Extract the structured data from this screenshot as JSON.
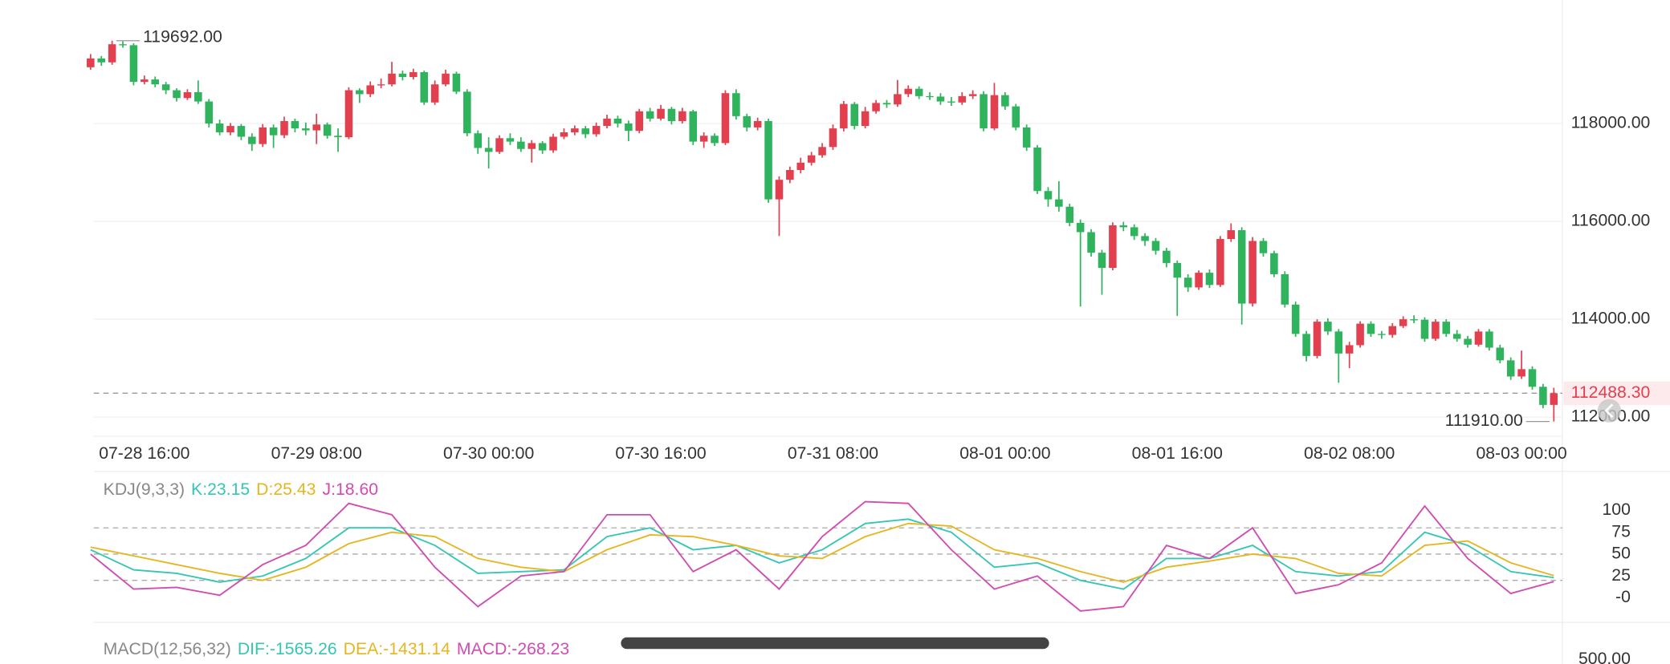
{
  "chart_data": [
    {
      "type": "candlestick",
      "colors": {
        "up": "#e3404f",
        "down": "#2fb35d"
      },
      "grid": true,
      "xlim": [
        -0.5,
        136.8
      ],
      "ylim": [
        111609,
        120522
      ],
      "yticks": [
        {
          "value": 112000,
          "label": "112000.00"
        },
        {
          "value": 114000,
          "label": "114000.00"
        },
        {
          "value": 116000,
          "label": "116000.00"
        },
        {
          "value": 118000,
          "label": "118000.00"
        }
      ],
      "xticks": [
        {
          "value": 5,
          "label": "07-28 16:00"
        },
        {
          "value": 21,
          "label": "07-29 08:00"
        },
        {
          "value": 37,
          "label": "07-30 00:00"
        },
        {
          "value": 53,
          "label": "07-30 16:00"
        },
        {
          "value": 69,
          "label": "07-31 08:00"
        },
        {
          "value": 85,
          "label": "08-01 00:00"
        },
        {
          "value": 101,
          "label": "08-01 16:00"
        },
        {
          "value": 117,
          "label": "08-02 08:00"
        },
        {
          "value": 133,
          "label": "08-03 00:00"
        }
      ],
      "high_label": {
        "x": 2,
        "value": 119692,
        "label": "119692.00"
      },
      "low_label": {
        "x": 136,
        "value": 111910,
        "label": "111910.00"
      },
      "last_price": {
        "value": 112488.3,
        "label": "112488.30"
      },
      "ohlc": [
        [
          119150,
          119420,
          119100,
          119330
        ],
        [
          119330,
          119380,
          119180,
          119250
        ],
        [
          119250,
          119692,
          119200,
          119620
        ],
        [
          119620,
          119680,
          119550,
          119600
        ],
        [
          119600,
          119640,
          118780,
          118850
        ],
        [
          118850,
          118980,
          118800,
          118900
        ],
        [
          118900,
          118960,
          118740,
          118800
        ],
        [
          118800,
          118850,
          118600,
          118680
        ],
        [
          118680,
          118720,
          118450,
          118520
        ],
        [
          118520,
          118700,
          118480,
          118640
        ],
        [
          118640,
          118880,
          118400,
          118450
        ],
        [
          118450,
          118500,
          117920,
          118000
        ],
        [
          118000,
          118080,
          117760,
          117820
        ],
        [
          117820,
          118010,
          117760,
          117950
        ],
        [
          117950,
          117990,
          117660,
          117730
        ],
        [
          117730,
          117800,
          117440,
          117580
        ],
        [
          117580,
          117990,
          117520,
          117920
        ],
        [
          117920,
          117980,
          117500,
          117760
        ],
        [
          117760,
          118140,
          117700,
          118050
        ],
        [
          118050,
          118100,
          117820,
          117900
        ],
        [
          117900,
          118020,
          117760,
          117860
        ],
        [
          117860,
          118200,
          117580,
          117980
        ],
        [
          117980,
          118020,
          117690,
          117750
        ],
        [
          117750,
          117900,
          117420,
          117720
        ],
        [
          117720,
          118740,
          117680,
          118680
        ],
        [
          118680,
          118720,
          118420,
          118600
        ],
        [
          118600,
          118860,
          118540,
          118780
        ],
        [
          118780,
          118920,
          118720,
          118800
        ],
        [
          118800,
          119260,
          118760,
          119020
        ],
        [
          119020,
          119080,
          118880,
          118950
        ],
        [
          118950,
          119120,
          118900,
          119050
        ],
        [
          119050,
          119080,
          118380,
          118430
        ],
        [
          118430,
          118880,
          118380,
          118800
        ],
        [
          118800,
          119100,
          118760,
          119020
        ],
        [
          119020,
          119060,
          118600,
          118650
        ],
        [
          118650,
          118700,
          117740,
          117800
        ],
        [
          117800,
          117860,
          117380,
          117500
        ],
        [
          117500,
          117720,
          117080,
          117420
        ],
        [
          117420,
          117760,
          117380,
          117700
        ],
        [
          117700,
          117800,
          117560,
          117630
        ],
        [
          117630,
          117720,
          117420,
          117480
        ],
        [
          117480,
          117660,
          117200,
          117600
        ],
        [
          117600,
          117640,
          117380,
          117450
        ],
        [
          117450,
          117790,
          117400,
          117730
        ],
        [
          117730,
          117900,
          117680,
          117820
        ],
        [
          117820,
          117960,
          117760,
          117900
        ],
        [
          117900,
          117950,
          117700,
          117780
        ],
        [
          117780,
          118020,
          117730,
          117950
        ],
        [
          117950,
          118180,
          117900,
          118100
        ],
        [
          118100,
          118160,
          117920,
          118000
        ],
        [
          118000,
          118060,
          117640,
          117850
        ],
        [
          117850,
          118300,
          117800,
          118250
        ],
        [
          118250,
          118320,
          118040,
          118100
        ],
        [
          118100,
          118380,
          118060,
          118300
        ],
        [
          118300,
          118340,
          117980,
          118050
        ],
        [
          118050,
          118320,
          118000,
          118250
        ],
        [
          118250,
          118280,
          117560,
          117630
        ],
        [
          117630,
          117820,
          117500,
          117750
        ],
        [
          117750,
          117800,
          117540,
          117600
        ],
        [
          117600,
          118680,
          117560,
          118620
        ],
        [
          118620,
          118700,
          118080,
          118150
        ],
        [
          118150,
          118200,
          117840,
          117920
        ],
        [
          117920,
          118120,
          117860,
          118050
        ],
        [
          118050,
          118100,
          116380,
          116450
        ],
        [
          116450,
          116920,
          115700,
          116850
        ],
        [
          116850,
          117120,
          116780,
          117050
        ],
        [
          117050,
          117300,
          116980,
          117200
        ],
        [
          117200,
          117420,
          117140,
          117350
        ],
        [
          117350,
          117600,
          117300,
          117520
        ],
        [
          117520,
          117980,
          117460,
          117900
        ],
        [
          117900,
          118460,
          117840,
          118400
        ],
        [
          118400,
          118440,
          117880,
          117950
        ],
        [
          117950,
          118340,
          117900,
          118250
        ],
        [
          118250,
          118480,
          118200,
          118420
        ],
        [
          118420,
          118480,
          118320,
          118390
        ],
        [
          118390,
          118890,
          118340,
          118600
        ],
        [
          118600,
          118780,
          118540,
          118710
        ],
        [
          118710,
          118760,
          118500,
          118560
        ],
        [
          118560,
          118640,
          118480,
          118550
        ],
        [
          118550,
          118620,
          118380,
          118450
        ],
        [
          118450,
          118540,
          118360,
          118430
        ],
        [
          118430,
          118640,
          118380,
          118560
        ],
        [
          118560,
          118680,
          118500,
          118600
        ],
        [
          118600,
          118660,
          117840,
          117900
        ],
        [
          117900,
          118830,
          117860,
          118580
        ],
        [
          118580,
          118640,
          118280,
          118350
        ],
        [
          118350,
          118400,
          117860,
          117920
        ],
        [
          117920,
          117980,
          117440,
          117510
        ],
        [
          117510,
          117560,
          116560,
          116620
        ],
        [
          116620,
          116700,
          116300,
          116450
        ],
        [
          116450,
          116820,
          116200,
          116300
        ],
        [
          116300,
          116360,
          115900,
          115970
        ],
        [
          115970,
          116040,
          114260,
          115780
        ],
        [
          115780,
          115840,
          115280,
          115360
        ],
        [
          115360,
          115420,
          114500,
          115050
        ],
        [
          115050,
          115980,
          115000,
          115920
        ],
        [
          115920,
          115990,
          115800,
          115880
        ],
        [
          115880,
          115940,
          115620,
          115700
        ],
        [
          115700,
          115760,
          115500,
          115600
        ],
        [
          115600,
          115660,
          115320,
          115400
        ],
        [
          115400,
          115460,
          115060,
          115150
        ],
        [
          115150,
          115200,
          114070,
          114850
        ],
        [
          114850,
          114920,
          114560,
          114650
        ],
        [
          114650,
          115000,
          114600,
          114950
        ],
        [
          114950,
          115020,
          114640,
          114700
        ],
        [
          114700,
          115700,
          114660,
          115640
        ],
        [
          115640,
          115960,
          115580,
          115820
        ],
        [
          115820,
          115880,
          113890,
          114320
        ],
        [
          114320,
          115680,
          114260,
          115600
        ],
        [
          115600,
          115660,
          115280,
          115350
        ],
        [
          115350,
          115400,
          114860,
          114920
        ],
        [
          114920,
          114980,
          114240,
          114300
        ],
        [
          114300,
          114360,
          113640,
          113700
        ],
        [
          113700,
          113760,
          113140,
          113250
        ],
        [
          113250,
          114000,
          113200,
          113950
        ],
        [
          113950,
          114020,
          113680,
          113750
        ],
        [
          113750,
          113800,
          112700,
          113300
        ],
        [
          113300,
          113540,
          113000,
          113470
        ],
        [
          113470,
          113960,
          113420,
          113910
        ],
        [
          113910,
          113960,
          113640,
          113700
        ],
        [
          113700,
          113760,
          113600,
          113680
        ],
        [
          113680,
          113920,
          113620,
          113860
        ],
        [
          113860,
          114060,
          113820,
          114000
        ],
        [
          114000,
          114080,
          113920,
          113990
        ],
        [
          113990,
          114040,
          113540,
          113600
        ],
        [
          113600,
          114000,
          113560,
          113950
        ],
        [
          113950,
          114000,
          113640,
          113700
        ],
        [
          113700,
          113780,
          113540,
          113600
        ],
        [
          113600,
          113660,
          113420,
          113480
        ],
        [
          113480,
          113800,
          113440,
          113750
        ],
        [
          113750,
          113800,
          113360,
          113420
        ],
        [
          113420,
          113480,
          113100,
          113160
        ],
        [
          113160,
          113220,
          112760,
          112830
        ],
        [
          112830,
          113360,
          112780,
          112980
        ],
        [
          112980,
          113040,
          112560,
          112620
        ],
        [
          112620,
          112680,
          112180,
          112250
        ],
        [
          112250,
          112600,
          111910,
          112488.3
        ]
      ]
    },
    {
      "type": "line",
      "title": "KDJ(9,3,3)",
      "xlim": [
        -0.5,
        136.8
      ],
      "ylim": [
        -22,
        130
      ],
      "yticks": [
        100,
        75,
        50,
        25,
        {
          "value": 0,
          "label": "-0"
        }
      ],
      "ref_lines": [
        80,
        50,
        20
      ],
      "x": [
        0,
        4,
        8,
        12,
        16,
        20,
        24,
        28,
        32,
        36,
        40,
        44,
        48,
        52,
        56,
        60,
        64,
        68,
        72,
        76,
        80,
        84,
        88,
        92,
        96,
        100,
        104,
        108,
        112,
        116,
        120,
        124,
        128,
        132,
        136
      ],
      "series": [
        {
          "name": "K:23.15",
          "color": "#35c6b4",
          "values": [
            55,
            32,
            28,
            18,
            25,
            45,
            80,
            80,
            60,
            28,
            30,
            32,
            70,
            80,
            55,
            60,
            40,
            55,
            85,
            90,
            75,
            35,
            40,
            20,
            10,
            45,
            45,
            60,
            30,
            25,
            30,
            75,
            60,
            30,
            23.15
          ]
        },
        {
          "name": "D:25.43",
          "color": "#e6b620",
          "values": [
            58,
            48,
            38,
            28,
            20,
            35,
            62,
            75,
            70,
            45,
            35,
            30,
            55,
            72,
            70,
            60,
            48,
            45,
            70,
            85,
            82,
            55,
            45,
            30,
            18,
            35,
            42,
            50,
            45,
            28,
            25,
            60,
            65,
            40,
            25.43
          ]
        },
        {
          "name": "J:18.60",
          "color": "#d04cb2",
          "values": [
            50,
            10,
            12,
            3,
            38,
            60,
            108,
            95,
            35,
            -10,
            25,
            30,
            95,
            95,
            30,
            55,
            10,
            70,
            110,
            108,
            55,
            10,
            25,
            -15,
            -10,
            60,
            45,
            80,
            5,
            15,
            40,
            105,
            45,
            5,
            18.6
          ]
        }
      ]
    },
    {
      "type": "line",
      "title": "MACD(12,56,32)",
      "ylim": [
        -2000,
        700
      ],
      "yticks": [
        {
          "value": 500,
          "label": "500.00"
        }
      ],
      "legend": [
        {
          "text": "DIF:-1565.26",
          "color": "#35c6b4"
        },
        {
          "text": "DEA:-1431.14",
          "color": "#e6b620"
        },
        {
          "text": "MACD:-268.23",
          "color": "#d04cb2"
        }
      ]
    }
  ]
}
